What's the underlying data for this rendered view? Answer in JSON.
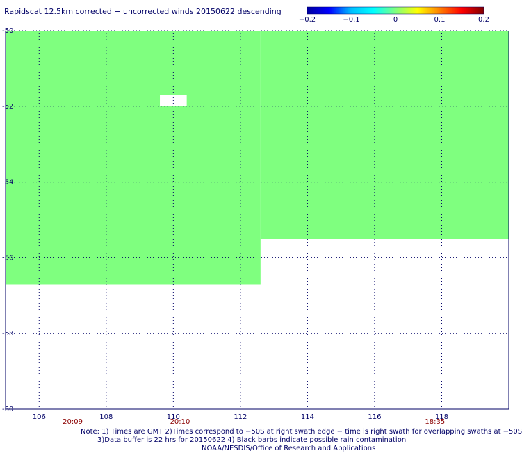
{
  "chart_data": {
    "type": "heatmap",
    "title": "Rapidscat 12.5km corrected − uncorrected winds 20150622 descending",
    "xlim": [
      105.0,
      120.0
    ],
    "ylim": [
      -60,
      -50
    ],
    "x_ticks": [
      106,
      108,
      110,
      112,
      114,
      116,
      118
    ],
    "y_ticks": [
      -50,
      -52,
      -54,
      -56,
      -58,
      -60
    ],
    "grid": true,
    "colorbar": {
      "min": -0.2,
      "max": 0.2,
      "ticks": [
        "−0.2",
        "−0.1",
        "0",
        "0.1",
        "0.2"
      ],
      "colors": [
        "#0000a0",
        "#0000ff",
        "#00bfff",
        "#00ffff",
        "#7fff7f",
        "#ffff00",
        "#ff8000",
        "#ff0000",
        "#800000"
      ]
    },
    "time_labels": [
      {
        "lon": 107.0,
        "label": "20:09"
      },
      {
        "lon": 110.2,
        "label": "20:10"
      },
      {
        "lon": 117.8,
        "label": "18:35"
      }
    ],
    "field_value": 0.0,
    "field_color": "#7fff7f",
    "swath_coverage": {
      "regions": [
        {
          "lon_from": 105.0,
          "lon_to": 112.6,
          "lat_south_edge": -56.7
        },
        {
          "lon_from": 112.6,
          "lon_to": 120.0,
          "lat_south_edge": -55.5
        }
      ],
      "gap": {
        "lon": 109.6,
        "lat": -51.7,
        "width_deg": 0.8,
        "height_deg": 0.3
      }
    }
  },
  "notes": {
    "line1": "Note: 1) Times are GMT 2)Times correspond to −50S at right swath edge − time is right swath for overlapping swaths at −50S",
    "line2": "3)Data buffer is 22 hrs for 20150622 4) Black barbs indicate possible rain contamination",
    "line3": "NOAA/NESDIS/Office of Research and Applications"
  }
}
